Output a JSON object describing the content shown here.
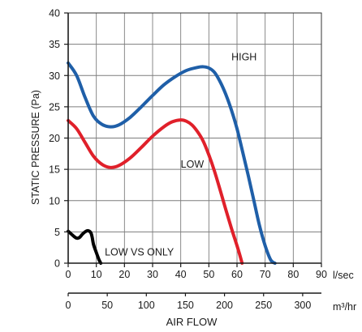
{
  "chart_data": {
    "type": "line",
    "ylabel": "STATIC PRESSURE (Pa)",
    "xlabel": "AIR FLOW",
    "x_unit": "l/sec",
    "x2_unit": "m³/hr",
    "ylim": [
      0,
      40
    ],
    "xlim": [
      0,
      90
    ],
    "x2lim": [
      0,
      324
    ],
    "y_ticks": [
      "0",
      "5",
      "10",
      "15",
      "20",
      "25",
      "30",
      "35",
      "40"
    ],
    "x_ticks": [
      "0",
      "10",
      "20",
      "30",
      "40",
      "50",
      "60",
      "70",
      "80",
      "90"
    ],
    "x2_ticks": [
      "0",
      "50",
      "100",
      "150",
      "200",
      "250",
      "300"
    ],
    "grid": true,
    "series": [
      {
        "name": "HIGH",
        "color": "#1f5fa8",
        "x": [
          0,
          3,
          6,
          9,
          12,
          15,
          18,
          22,
          26,
          30,
          34,
          38,
          42,
          46,
          48,
          50,
          52,
          54,
          56,
          58,
          60,
          62,
          64,
          66,
          68,
          70,
          72,
          73.5
        ],
        "y": [
          32,
          30,
          26.5,
          23.5,
          22.2,
          21.8,
          22.1,
          23.3,
          25,
          26.8,
          28.5,
          29.8,
          30.8,
          31.3,
          31.4,
          31.2,
          30.5,
          29,
          27,
          24.5,
          21.5,
          17.8,
          14,
          10,
          6,
          2.8,
          0.5,
          0
        ]
      },
      {
        "name": "LOW",
        "color": "#e0202a",
        "x": [
          0,
          3,
          6,
          9,
          12,
          15,
          18,
          22,
          26,
          30,
          34,
          37,
          40,
          42,
          44,
          46,
          48,
          50,
          52,
          54,
          56,
          58,
          60,
          61,
          61.8
        ],
        "y": [
          22.8,
          21.5,
          19.3,
          17.1,
          15.8,
          15.3,
          15.6,
          16.8,
          18.5,
          20.3,
          21.8,
          22.6,
          22.9,
          22.7,
          22.1,
          21,
          19.5,
          17.3,
          14.7,
          11.7,
          8.6,
          5.6,
          2.8,
          1.3,
          0
        ]
      },
      {
        "name": "LOW VS ONLY",
        "color": "#000000",
        "x": [
          0,
          1,
          2,
          3,
          4,
          5,
          6,
          7,
          8,
          8.5,
          9,
          10,
          11,
          11.6
        ],
        "y": [
          5.1,
          4.7,
          4.3,
          4.0,
          4.1,
          4.6,
          5.0,
          5.2,
          4.9,
          4.2,
          3.0,
          1.7,
          0.5,
          0
        ]
      }
    ]
  }
}
